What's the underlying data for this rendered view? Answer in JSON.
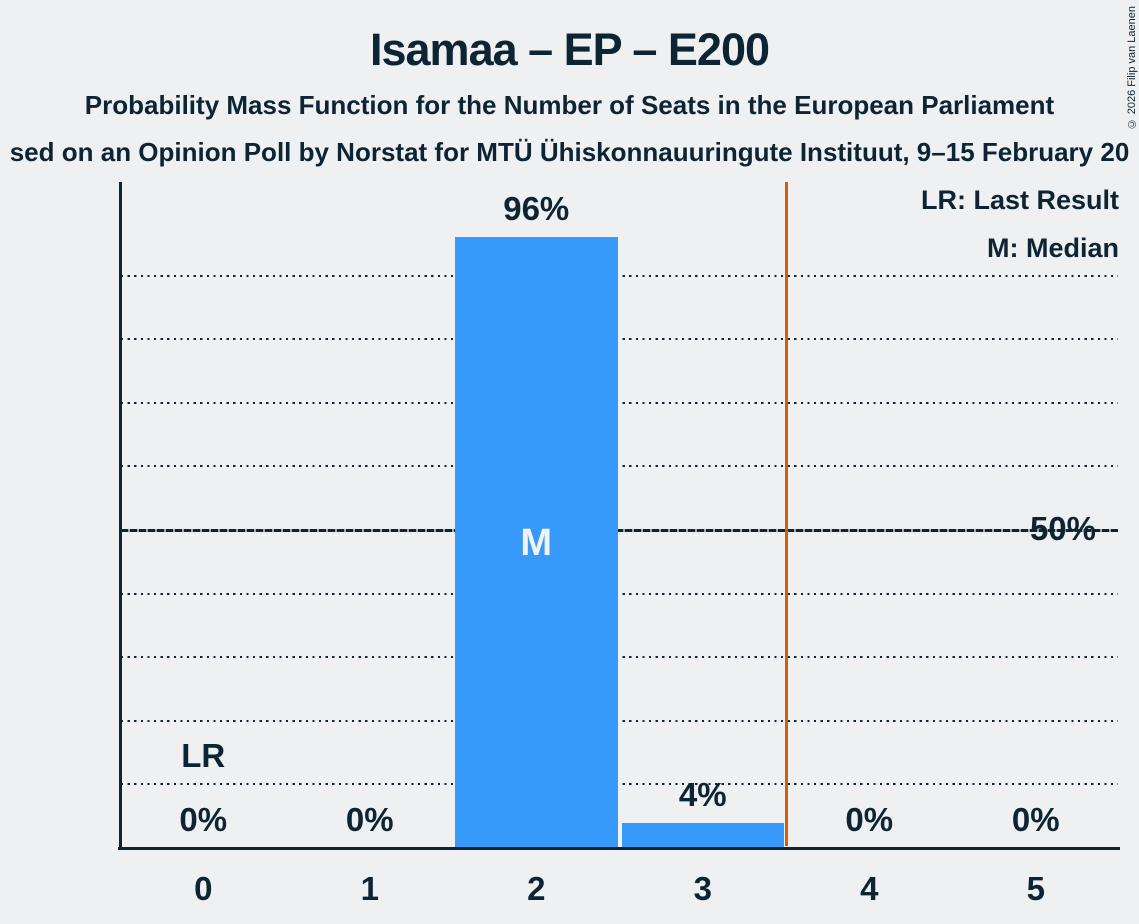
{
  "copyright": "© 2026 Filip van Laenen",
  "header": {
    "title": "Isamaa – EP – E200",
    "subtitle": "Probability Mass Function for the Number of Seats in the European Parliament",
    "subtitle2": "sed on an Opinion Poll by Norstat for MTÜ Ühiskonnauuringute Instituut, 9–15 February 20"
  },
  "legend": {
    "lr": "LR: Last Result",
    "m": "M: Median"
  },
  "y_axis": {
    "label_50": "50%"
  },
  "chart_data": {
    "type": "bar",
    "title": "Isamaa – EP – E200",
    "categories": [
      "0",
      "1",
      "2",
      "3",
      "4",
      "5"
    ],
    "values": [
      0,
      0,
      96,
      4,
      0,
      0
    ],
    "value_labels": [
      "0%",
      "0%",
      "96%",
      "4%",
      "0%",
      "0%"
    ],
    "ylim": [
      0,
      100
    ],
    "dotted_gridlines_pct": [
      10,
      20,
      30,
      40,
      60,
      70,
      80,
      90
    ],
    "solid_gridline_pct": 50,
    "legend_position": "top-right",
    "annotations": {
      "median_seat_index": 2,
      "median_label": "M",
      "last_result_seat_index": 0,
      "last_result_label": "LR",
      "vertical_line_x": 3.5
    },
    "colors": {
      "bar": "#3799fa",
      "vertical_line": "#d45f05",
      "text": "#0d2433",
      "median_text": "#f2f2f2",
      "background": "#eef0f1"
    }
  }
}
